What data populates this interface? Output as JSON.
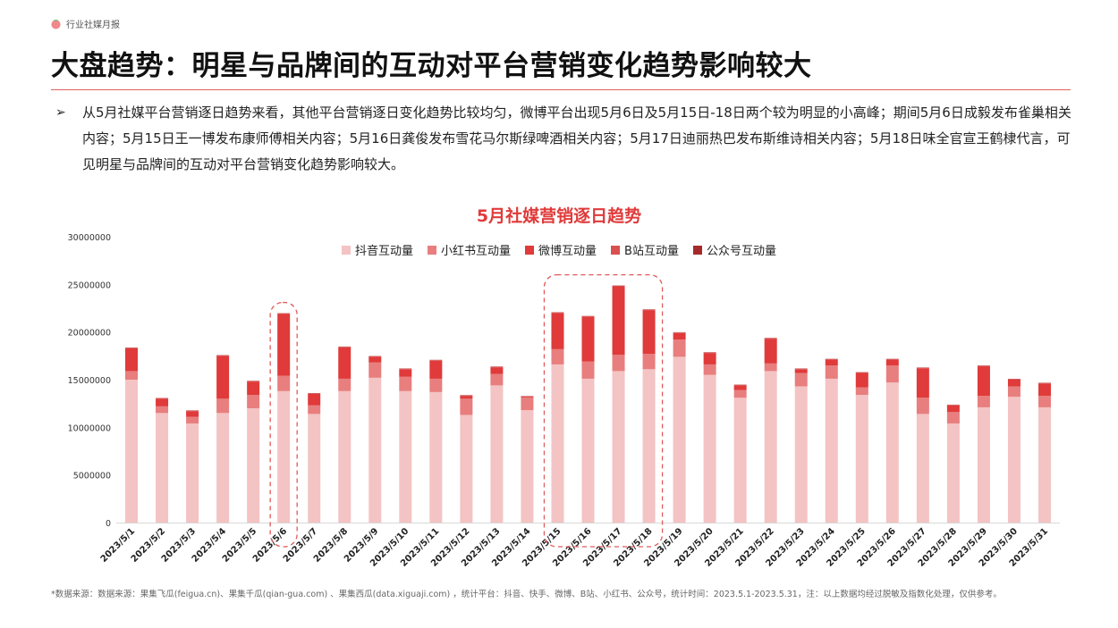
{
  "header": {
    "brand_label": "行业社媒月报"
  },
  "page": {
    "title": "大盘趋势：明星与品牌间的互动对平台营销变化趋势影响较大",
    "summary": "从5月社媒平台营销逐日趋势来看，其他平台营销逐日变化趋势比较均匀，微博平台出现5月6日及5月15日-18日两个较为明显的小高峰；期间5月6日成毅发布雀巢相关内容；5月15日王一博发布康师傅相关内容；5月16日龚俊发布雪花马尔斯绿啤酒相关内容；5月17日迪丽热巴发布斯维诗相关内容；5月18日味全官宣王鹤棣代言，可见明星与品牌间的互动对平台营销变化趋势影响较大。"
  },
  "footnote": "*数据来源：数据来源：果集飞瓜(feigua.cn)、果集千瓜(qian-gua.com) 、果集西瓜(data.xiguaji.com) ，统计平台：抖音、快手、微博、B站、小红书、公众号，统计时间：2023.5.1-2023.5.31，注：以上数据均经过脱敏及指数化处理，仅供参考。",
  "chart_data": {
    "type": "bar",
    "stacked": true,
    "title": "5月社媒营销逐日趋势",
    "legend_position": "top",
    "ylim": [
      0,
      30000000
    ],
    "yticks": [
      0,
      5000000,
      10000000,
      15000000,
      20000000,
      25000000,
      30000000
    ],
    "ytick_labels": [
      "0",
      "5000000",
      "10000000",
      "15000000",
      "20000000",
      "25000000",
      "30000000"
    ],
    "categories": [
      "2023/5/1",
      "2023/5/2",
      "2023/5/3",
      "2023/5/4",
      "2023/5/5",
      "2023/5/6",
      "2023/5/7",
      "2023/5/8",
      "2023/5/9",
      "2023/5/10",
      "2023/5/11",
      "2023/5/12",
      "2023/5/13",
      "2023/5/14",
      "2023/5/15",
      "2023/5/16",
      "2023/5/17",
      "2023/5/18",
      "2023/5/19",
      "2023/5/20",
      "2023/5/21",
      "2023/5/22",
      "2023/5/23",
      "2023/5/24",
      "2023/5/25",
      "2023/5/26",
      "2023/5/27",
      "2023/5/28",
      "2023/5/29",
      "2023/5/30",
      "2023/5/31"
    ],
    "highlight_ranges": [
      [
        "2023/5/6",
        "2023/5/6"
      ],
      [
        "2023/5/15",
        "2023/5/18"
      ]
    ],
    "series": [
      {
        "name": "抖音互动量",
        "color": "#f4c3c3",
        "values": [
          15000000,
          11500000,
          10400000,
          11500000,
          12000000,
          13800000,
          11400000,
          13800000,
          15200000,
          13800000,
          13700000,
          11300000,
          14400000,
          11800000,
          16600000,
          15100000,
          15900000,
          16100000,
          17400000,
          15500000,
          13100000,
          15900000,
          14300000,
          15100000,
          13400000,
          14700000,
          11400000,
          10400000,
          12100000,
          13200000,
          12100000
        ]
      },
      {
        "name": "小红书互动量",
        "color": "#e87e7e",
        "values": [
          900000,
          700000,
          700000,
          1500000,
          1400000,
          1600000,
          900000,
          1300000,
          1600000,
          1500000,
          1400000,
          1700000,
          1200000,
          1300000,
          1600000,
          1800000,
          1700000,
          1600000,
          1800000,
          1100000,
          800000,
          800000,
          1400000,
          1400000,
          800000,
          1800000,
          1700000,
          1200000,
          1200000,
          1100000,
          1200000
        ]
      },
      {
        "name": "微博互动量",
        "color": "#e03a3a",
        "values": [
          2400000,
          800000,
          600000,
          4500000,
          1400000,
          6500000,
          1200000,
          3300000,
          600000,
          800000,
          1900000,
          300000,
          700000,
          100000,
          3800000,
          4700000,
          7200000,
          4600000,
          700000,
          1200000,
          500000,
          2600000,
          400000,
          600000,
          1500000,
          600000,
          3100000,
          700000,
          3100000,
          700000,
          1300000
        ]
      },
      {
        "name": "B站互动量",
        "color": "#d85050",
        "values": [
          50000,
          50000,
          50000,
          50000,
          50000,
          50000,
          50000,
          50000,
          50000,
          50000,
          50000,
          50000,
          50000,
          50000,
          50000,
          50000,
          50000,
          50000,
          50000,
          50000,
          50000,
          50000,
          50000,
          50000,
          50000,
          50000,
          50000,
          50000,
          50000,
          50000,
          50000
        ]
      },
      {
        "name": "公众号互动量",
        "color": "#a52a2a",
        "values": [
          30000,
          30000,
          30000,
          30000,
          30000,
          30000,
          30000,
          30000,
          30000,
          30000,
          30000,
          30000,
          30000,
          30000,
          30000,
          30000,
          30000,
          30000,
          30000,
          30000,
          30000,
          30000,
          30000,
          30000,
          30000,
          30000,
          30000,
          30000,
          30000,
          30000,
          30000
        ]
      }
    ]
  }
}
